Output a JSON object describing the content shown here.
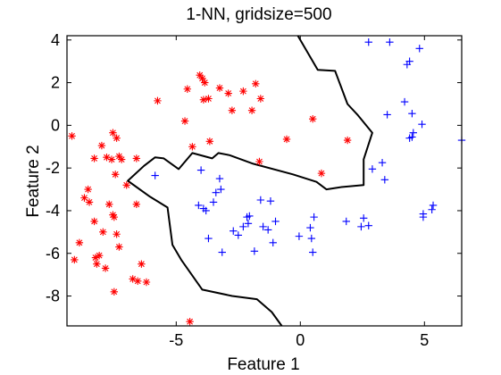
{
  "chart_data": {
    "type": "scatter",
    "title": "1-NN, gridsize=500",
    "xlabel": "Feature 1",
    "ylabel": "Feature 2",
    "xlim": [
      -9.4,
      6.5
    ],
    "ylim": [
      -9.4,
      4.2
    ],
    "xticks": [
      -5,
      0,
      5
    ],
    "yticks": [
      4,
      2,
      0,
      -2,
      -4,
      -6,
      -8
    ],
    "xtick_labels": [
      "-5",
      "0",
      "5"
    ],
    "ytick_labels": [
      "4",
      "2",
      "0",
      "-2",
      "-4",
      "-6",
      "-8"
    ],
    "grid": false,
    "legend": "none",
    "series": [
      {
        "marker": "asterisk",
        "color": "#ff0000",
        "points": [
          [
            -9.2,
            -0.5
          ],
          [
            -9.1,
            -6.3
          ],
          [
            -8.9,
            -5.5
          ],
          [
            -8.7,
            -3.4
          ],
          [
            -8.55,
            -3.0
          ],
          [
            -8.5,
            -3.6
          ],
          [
            -8.3,
            -1.55
          ],
          [
            -8.3,
            -4.5
          ],
          [
            -8.25,
            -6.2
          ],
          [
            -8.2,
            -6.5
          ],
          [
            -8.1,
            -6.1
          ],
          [
            -8.0,
            -0.95
          ],
          [
            -7.95,
            -5.0
          ],
          [
            -7.85,
            -6.7
          ],
          [
            -7.8,
            -1.5
          ],
          [
            -7.7,
            -3.7
          ],
          [
            -7.6,
            -1.6
          ],
          [
            -7.55,
            -0.35
          ],
          [
            -7.55,
            -4.2
          ],
          [
            -7.5,
            -4.3
          ],
          [
            -7.5,
            -7.8
          ],
          [
            -7.45,
            -2.3
          ],
          [
            -7.4,
            -0.6
          ],
          [
            -7.4,
            -5.1
          ],
          [
            -7.3,
            -5.7
          ],
          [
            -7.3,
            -1.45
          ],
          [
            -7.2,
            -1.6
          ],
          [
            -7.0,
            -2.8
          ],
          [
            -6.75,
            -7.2
          ],
          [
            -6.6,
            -1.55
          ],
          [
            -6.6,
            -3.7
          ],
          [
            -6.55,
            -7.3
          ],
          [
            -6.4,
            -6.5
          ],
          [
            -6.2,
            -7.35
          ],
          [
            -5.75,
            1.15
          ],
          [
            -4.65,
            0.2
          ],
          [
            -4.55,
            1.7
          ],
          [
            -4.45,
            -9.2
          ],
          [
            -4.35,
            -1.0
          ],
          [
            -4.05,
            2.35
          ],
          [
            -3.95,
            2.2
          ],
          [
            -3.9,
            1.2
          ],
          [
            -3.85,
            2.0
          ],
          [
            -3.7,
            1.25
          ],
          [
            -3.65,
            -0.75
          ],
          [
            -3.25,
            1.75
          ],
          [
            -2.9,
            1.5
          ],
          [
            -2.75,
            0.7
          ],
          [
            -2.3,
            1.6
          ],
          [
            -1.95,
            0.7
          ],
          [
            -1.8,
            1.95
          ],
          [
            -1.65,
            -1.7
          ],
          [
            -1.6,
            1.25
          ],
          [
            -0.55,
            -0.65
          ],
          [
            0.5,
            0.3
          ],
          [
            0.85,
            -2.25
          ],
          [
            1.9,
            -0.7
          ]
        ]
      },
      {
        "marker": "plus",
        "color": "#0000ff",
        "points": [
          [
            -5.85,
            -2.35
          ],
          [
            -4.1,
            -3.75
          ],
          [
            -4.0,
            -2.1
          ],
          [
            -3.9,
            -3.9
          ],
          [
            -3.8,
            -4.0
          ],
          [
            -3.7,
            -5.3
          ],
          [
            -3.5,
            -3.6
          ],
          [
            -3.4,
            -3.15
          ],
          [
            -3.25,
            -2.5
          ],
          [
            -3.2,
            -3.0
          ],
          [
            -3.15,
            -5.95
          ],
          [
            -2.7,
            -4.95
          ],
          [
            -2.5,
            -5.15
          ],
          [
            -2.3,
            -4.75
          ],
          [
            -2.15,
            -4.3
          ],
          [
            -2.1,
            -4.6
          ],
          [
            -2.05,
            -4.25
          ],
          [
            -1.85,
            -5.9
          ],
          [
            -1.6,
            -3.5
          ],
          [
            -1.5,
            -4.75
          ],
          [
            -1.3,
            -4.9
          ],
          [
            -1.2,
            -3.55
          ],
          [
            -1.1,
            -5.5
          ],
          [
            -1.0,
            -4.5
          ],
          [
            -0.05,
            -5.2
          ],
          [
            0.4,
            -4.8
          ],
          [
            0.45,
            -5.3
          ],
          [
            0.5,
            -5.95
          ],
          [
            0.55,
            -4.3
          ],
          [
            1.85,
            -4.5
          ],
          [
            2.45,
            -4.75
          ],
          [
            2.55,
            -4.35
          ],
          [
            2.75,
            -4.7
          ],
          [
            2.75,
            3.9
          ],
          [
            2.9,
            -2.05
          ],
          [
            3.3,
            -1.75
          ],
          [
            3.4,
            -2.55
          ],
          [
            3.5,
            0.5
          ],
          [
            3.6,
            3.9
          ],
          [
            4.2,
            1.1
          ],
          [
            4.3,
            2.85
          ],
          [
            4.4,
            3.0
          ],
          [
            4.4,
            -0.6
          ],
          [
            4.5,
            -0.55
          ],
          [
            4.5,
            0.55
          ],
          [
            4.55,
            -0.35
          ],
          [
            4.8,
            3.6
          ],
          [
            4.9,
            0.05
          ],
          [
            4.95,
            -4.3
          ],
          [
            4.95,
            -4.15
          ],
          [
            5.3,
            -3.95
          ],
          [
            5.35,
            -3.75
          ],
          [
            6.5,
            -0.7
          ]
        ]
      }
    ],
    "decision_boundary": [
      [
        -0.1,
        4.2
      ],
      [
        0.7,
        2.6
      ],
      [
        1.4,
        2.55
      ],
      [
        1.9,
        1.0
      ],
      [
        2.3,
        0.5
      ],
      [
        2.9,
        -0.35
      ],
      [
        2.55,
        -1.6
      ],
      [
        2.55,
        -2.8
      ],
      [
        1.6,
        -2.9
      ],
      [
        1.05,
        -3.0
      ],
      [
        0.65,
        -2.65
      ],
      [
        -0.3,
        -2.3
      ],
      [
        -1.9,
        -1.8
      ],
      [
        -2.85,
        -1.4
      ],
      [
        -3.3,
        -1.3
      ],
      [
        -3.55,
        -1.55
      ],
      [
        -4.35,
        -1.3
      ],
      [
        -4.9,
        -2.05
      ],
      [
        -5.5,
        -1.55
      ],
      [
        -5.85,
        -1.5
      ],
      [
        -6.3,
        -1.9
      ],
      [
        -6.95,
        -2.6
      ],
      [
        -6.05,
        -3.35
      ],
      [
        -5.35,
        -3.85
      ],
      [
        -5.15,
        -5.6
      ],
      [
        -4.8,
        -6.3
      ],
      [
        -3.95,
        -7.7
      ],
      [
        -2.75,
        -8.0
      ],
      [
        -1.75,
        -8.15
      ],
      [
        -1.15,
        -8.75
      ],
      [
        -0.75,
        -9.4
      ]
    ]
  }
}
